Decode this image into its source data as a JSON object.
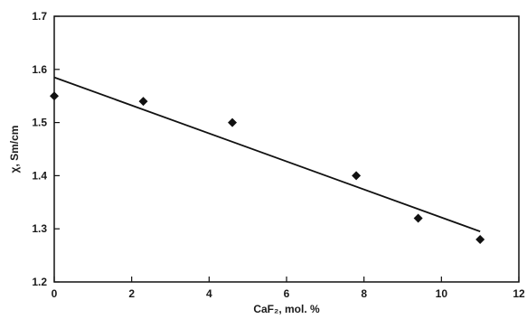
{
  "chart_data": {
    "type": "scatter",
    "title": "",
    "xlabel": "CaF₂, mol. %",
    "ylabel": "χ, Sm/cm",
    "xlim": [
      0,
      12
    ],
    "ylim": [
      1.2,
      1.7
    ],
    "x_ticks": [
      0,
      2,
      4,
      6,
      8,
      10,
      12
    ],
    "y_ticks": [
      1.2,
      1.3,
      1.4,
      1.5,
      1.6,
      1.7
    ],
    "x_tick_labels": [
      "0",
      "2",
      "4",
      "6",
      "8",
      "10",
      "12"
    ],
    "y_tick_labels": [
      "1.2",
      "1.3",
      "1.4",
      "1.5",
      "1.6",
      "1.7"
    ],
    "grid": false,
    "legend": "none",
    "marker": "diamond",
    "series": [
      {
        "x": [
          0,
          2.3,
          4.6,
          7.8,
          9.4,
          11.0
        ],
        "y": [
          1.55,
          1.54,
          1.5,
          1.4,
          1.32,
          1.28
        ]
      }
    ],
    "trendline": {
      "x": [
        0,
        11.0
      ],
      "y": [
        1.585,
        1.295
      ]
    },
    "colors": {
      "marker": "#111111",
      "line": "#111111",
      "axis": "#111111"
    }
  }
}
